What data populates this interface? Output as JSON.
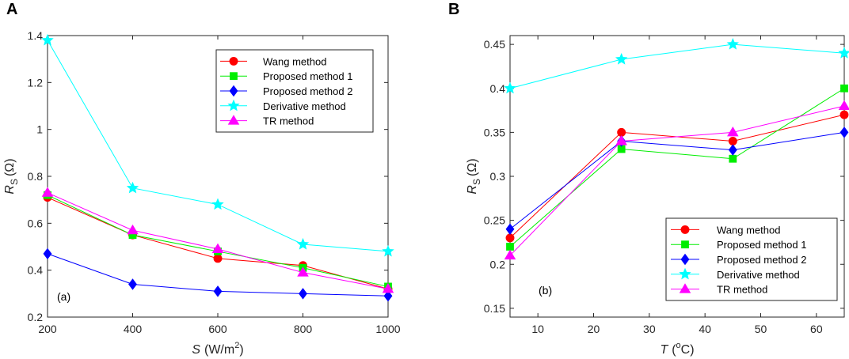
{
  "chart_data": [
    {
      "panel": "A",
      "type": "line",
      "annotation": "(a)",
      "xlabel_var": "S",
      "xlabel_unit_pre": "(W/m",
      "xlabel_unit_sup": "2",
      "xlabel_unit_post": ")",
      "ylabel_var": "R",
      "ylabel_sub": "S",
      "ylabel_unit": "(Ω)",
      "x": [
        200,
        400,
        600,
        800,
        1000
      ],
      "xlim": [
        200,
        1000
      ],
      "ylim": [
        0.2,
        1.4
      ],
      "xticks": [
        200,
        400,
        600,
        800,
        1000
      ],
      "yticks": [
        0.2,
        0.4,
        0.6,
        0.8,
        1,
        1.2,
        1.4
      ],
      "legend_position": "top-right",
      "series": [
        {
          "name": "Wang method",
          "color": "#ff0000",
          "marker": "circle",
          "values": [
            0.71,
            0.55,
            0.45,
            0.42,
            0.32
          ]
        },
        {
          "name": "Proposed method 1",
          "color": "#00ee00",
          "marker": "square",
          "values": [
            0.72,
            0.55,
            0.48,
            0.41,
            0.33
          ]
        },
        {
          "name": "Proposed method 2",
          "color": "#0000ff",
          "marker": "diamond",
          "values": [
            0.47,
            0.34,
            0.31,
            0.3,
            0.29
          ]
        },
        {
          "name": "Derivative method",
          "color": "#00ffff",
          "marker": "star",
          "values": [
            1.38,
            0.75,
            0.68,
            0.51,
            0.48
          ]
        },
        {
          "name": "TR method",
          "color": "#ff00ff",
          "marker": "triangle",
          "values": [
            0.73,
            0.57,
            0.49,
            0.39,
            0.32
          ]
        }
      ]
    },
    {
      "panel": "B",
      "type": "line",
      "annotation": "(b)",
      "xlabel_var": "T",
      "xlabel_unit_pre": "(",
      "xlabel_unit_sup": "o",
      "xlabel_unit_post": "C)",
      "ylabel_var": "R",
      "ylabel_sub": "S",
      "ylabel_unit": "(Ω)",
      "x": [
        5,
        25,
        45,
        65
      ],
      "xlim": [
        5,
        65
      ],
      "ylim": [
        0.14,
        0.46
      ],
      "xticks": [
        10,
        20,
        30,
        40,
        50,
        60
      ],
      "yticks": [
        0.15,
        0.2,
        0.25,
        0.3,
        0.35,
        0.4,
        0.45
      ],
      "legend_position": "bottom-right",
      "series": [
        {
          "name": "Wang method",
          "color": "#ff0000",
          "marker": "circle",
          "values": [
            0.23,
            0.35,
            0.34,
            0.37
          ]
        },
        {
          "name": "Proposed method 1",
          "color": "#00ee00",
          "marker": "square",
          "values": [
            0.22,
            0.331,
            0.32,
            0.4
          ]
        },
        {
          "name": "Proposed method 2",
          "color": "#0000ff",
          "marker": "diamond",
          "values": [
            0.24,
            0.34,
            0.33,
            0.35
          ]
        },
        {
          "name": "Derivative method",
          "color": "#00ffff",
          "marker": "star",
          "values": [
            0.4,
            0.433,
            0.45,
            0.44
          ]
        },
        {
          "name": "TR method",
          "color": "#ff00ff",
          "marker": "triangle",
          "values": [
            0.21,
            0.34,
            0.35,
            0.38
          ]
        }
      ]
    }
  ]
}
